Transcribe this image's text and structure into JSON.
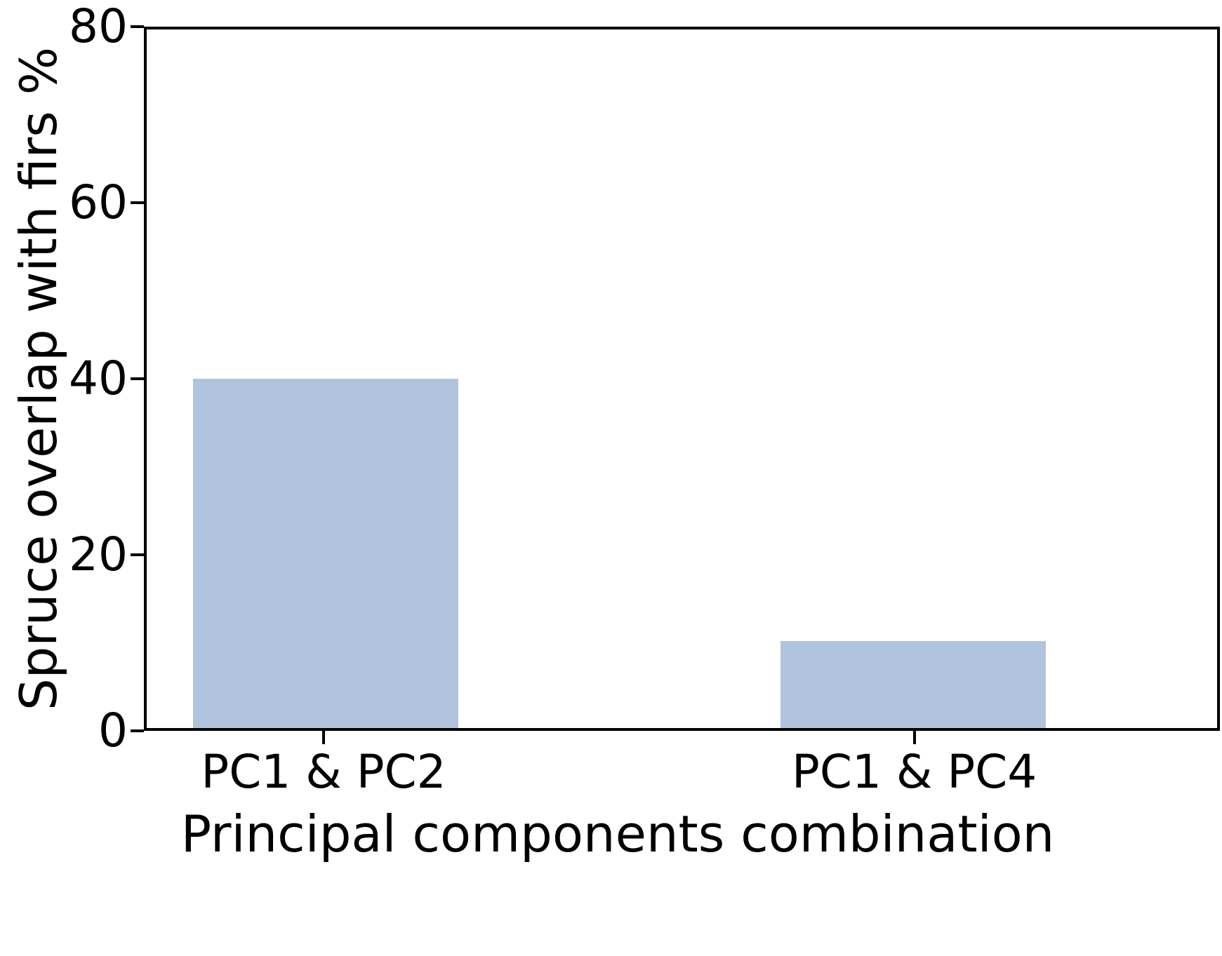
{
  "chart_data": {
    "type": "bar",
    "categories": [
      "PC1 & PC2",
      "PC1 & PC4"
    ],
    "values": [
      40,
      10
    ],
    "xlabel": "Principal components combination",
    "ylabel": "Spruce overlap with firs %",
    "ylim": [
      0,
      80
    ],
    "yticks": [
      0,
      20,
      40,
      60,
      80
    ],
    "bar_color": "#b0c4de",
    "background_color": "#ffffff",
    "axis_color": "#000000",
    "grid": false,
    "legend_position": "none"
  }
}
